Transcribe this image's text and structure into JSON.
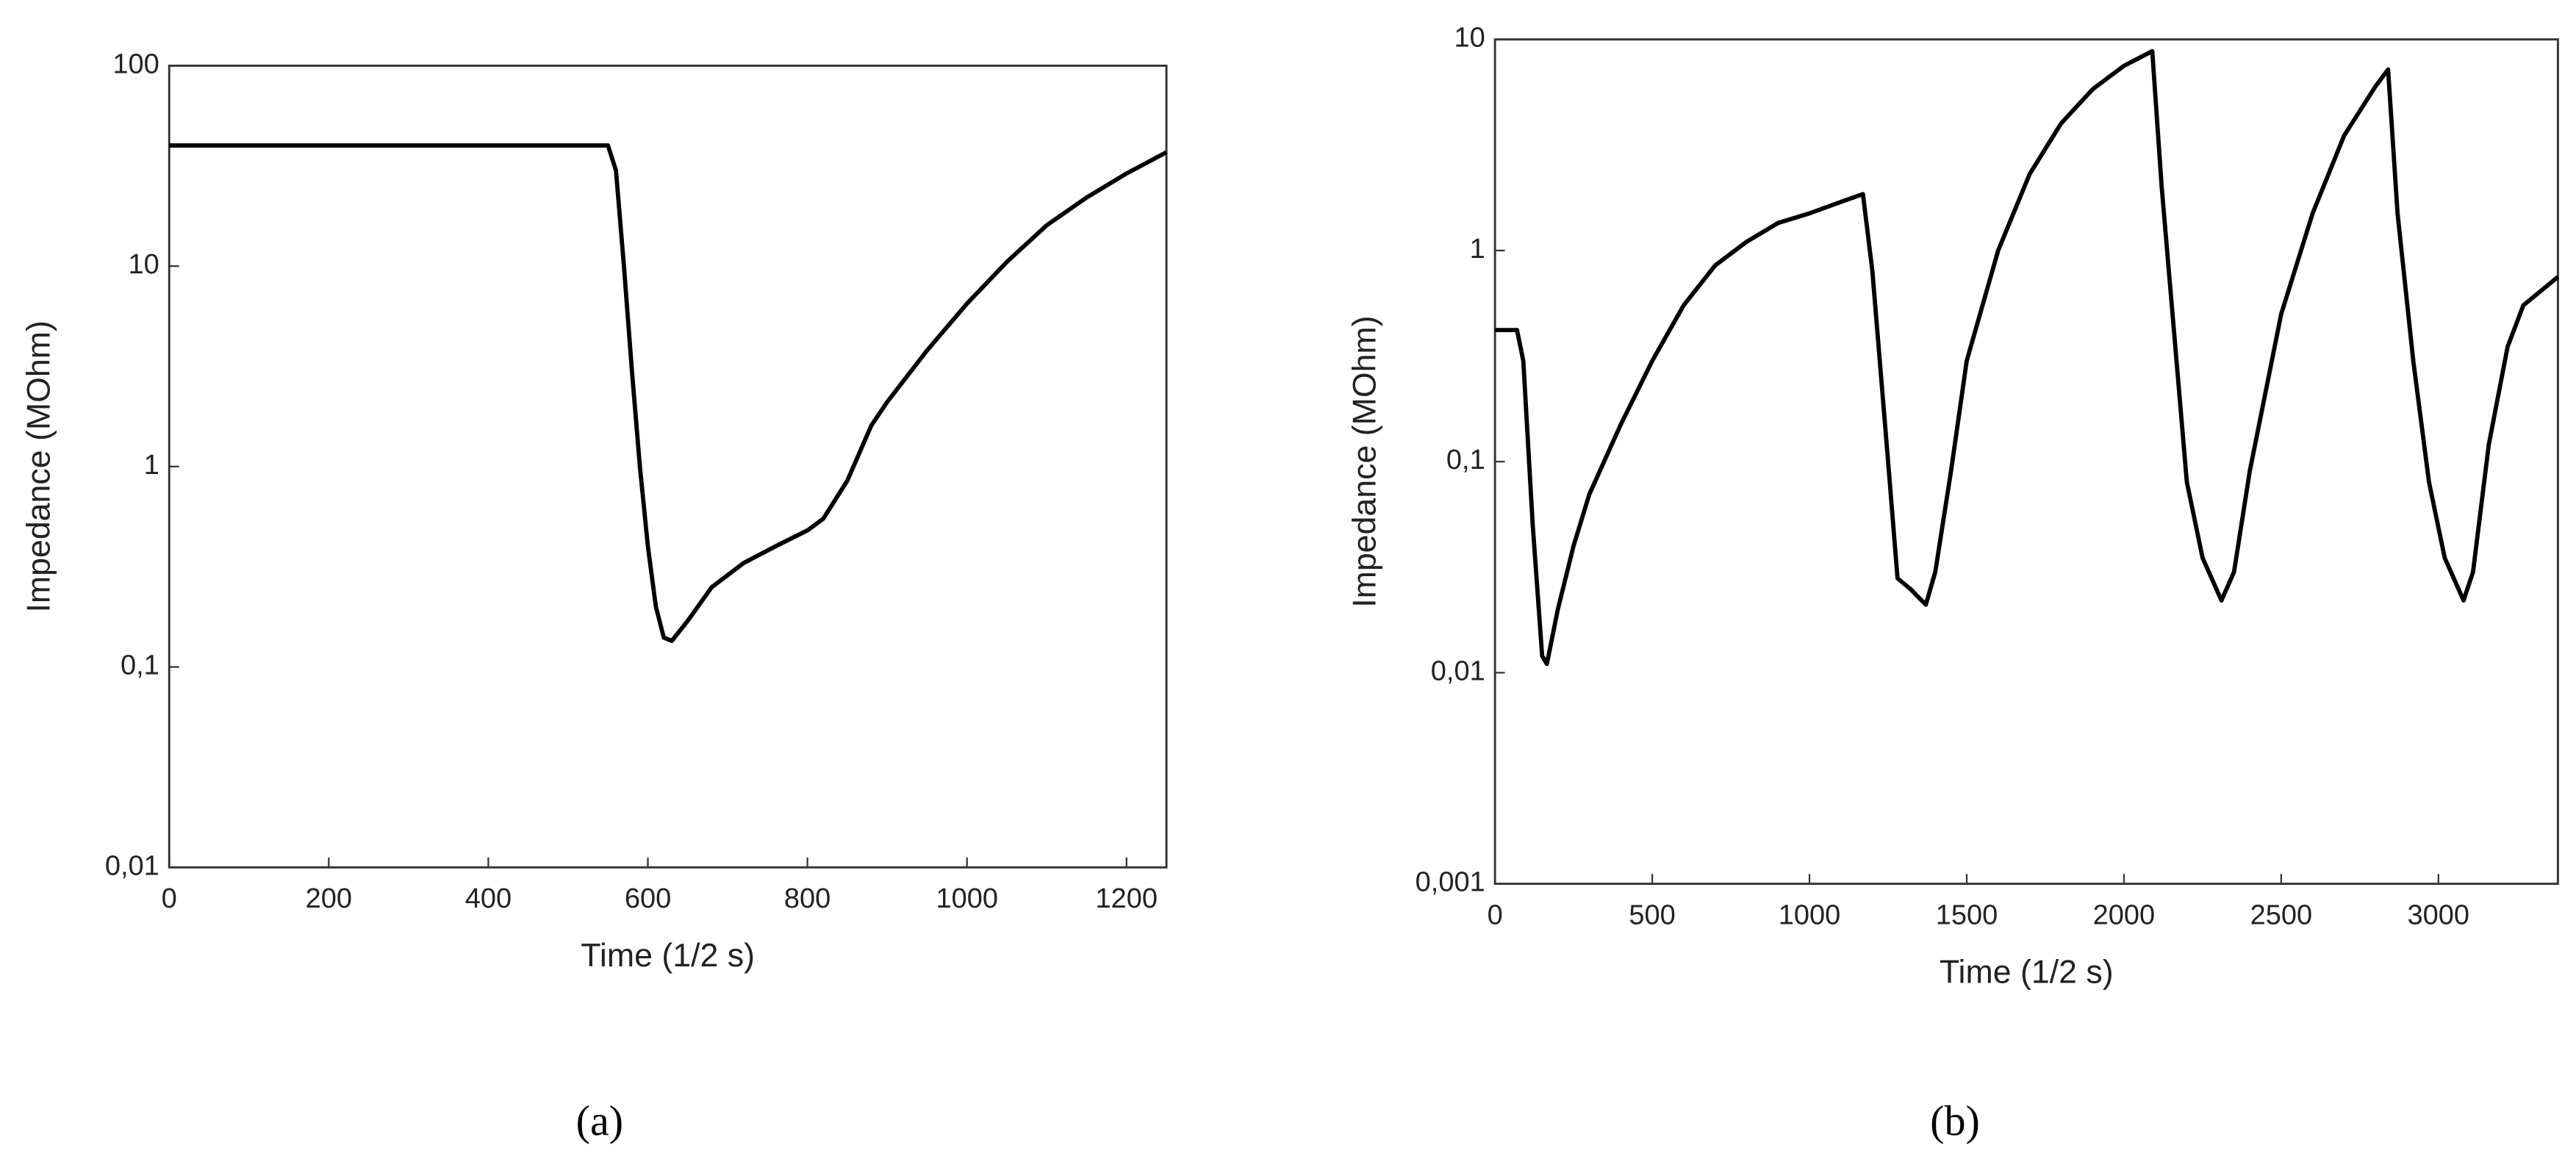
{
  "chart_data": [
    {
      "type": "line",
      "caption": "(a)",
      "xlabel": "Time (1/2 s)",
      "ylabel": "Impedance (MOhm)",
      "log_y": true,
      "xlim": [
        0,
        1250
      ],
      "ylim": [
        0.01,
        100
      ],
      "xticks": [
        0,
        200,
        400,
        600,
        800,
        1000,
        1200
      ],
      "yticks": [
        {
          "value": 0.01,
          "label": "0,01"
        },
        {
          "value": 0.1,
          "label": "0,1"
        },
        1,
        10,
        100
      ],
      "series": [
        {
          "color": "#000000",
          "x": [
            0,
            100,
            200,
            300,
            400,
            500,
            550,
            560,
            570,
            580,
            590,
            600,
            610,
            620,
            630,
            650,
            680,
            720,
            760,
            800,
            820,
            850,
            880,
            900,
            950,
            1000,
            1050,
            1100,
            1150,
            1200,
            1250
          ],
          "values": [
            40,
            40,
            40,
            40,
            40,
            40,
            40,
            30,
            10,
            3,
            1,
            0.4,
            0.2,
            0.14,
            0.135,
            0.17,
            0.25,
            0.33,
            0.4,
            0.48,
            0.55,
            0.85,
            1.6,
            2.1,
            3.8,
            6.5,
            10.5,
            16,
            22,
            29,
            37
          ]
        }
      ]
    },
    {
      "type": "line",
      "caption": "(b)",
      "xlabel": "Time (1/2 s)",
      "ylabel": "Impedance (MOhm)",
      "log_y": true,
      "xlim": [
        0,
        3380
      ],
      "ylim": [
        0.001,
        10
      ],
      "xticks": [
        0,
        500,
        1000,
        1500,
        2000,
        2500,
        3000
      ],
      "yticks": [
        {
          "value": 0.001,
          "label": "0,001"
        },
        {
          "value": 0.01,
          "label": "0,01"
        },
        {
          "value": 0.1,
          "label": "0,1"
        },
        1,
        10
      ],
      "series": [
        {
          "color": "#000000",
          "x": [
            0,
            70,
            90,
            120,
            150,
            165,
            200,
            250,
            300,
            400,
            500,
            600,
            700,
            800,
            900,
            1000,
            1100,
            1170,
            1200,
            1250,
            1280,
            1320,
            1370,
            1400,
            1450,
            1500,
            1600,
            1700,
            1800,
            1900,
            2000,
            2090,
            2120,
            2160,
            2200,
            2250,
            2310,
            2350,
            2400,
            2500,
            2600,
            2700,
            2800,
            2840,
            2870,
            2920,
            2970,
            3020,
            3080,
            3110,
            3160,
            3220,
            3270,
            3380
          ],
          "values": [
            0.42,
            0.42,
            0.3,
            0.05,
            0.012,
            0.011,
            0.02,
            0.04,
            0.07,
            0.15,
            0.3,
            0.55,
            0.85,
            1.1,
            1.35,
            1.5,
            1.7,
            1.85,
            0.8,
            0.1,
            0.028,
            0.025,
            0.021,
            0.03,
            0.09,
            0.3,
            1.0,
            2.3,
            4,
            5.8,
            7.5,
            8.8,
            2,
            0.4,
            0.08,
            0.035,
            0.022,
            0.03,
            0.09,
            0.5,
            1.5,
            3.5,
            6,
            7.2,
            1.5,
            0.3,
            0.08,
            0.035,
            0.022,
            0.03,
            0.12,
            0.35,
            0.55,
            0.75
          ]
        }
      ]
    }
  ]
}
